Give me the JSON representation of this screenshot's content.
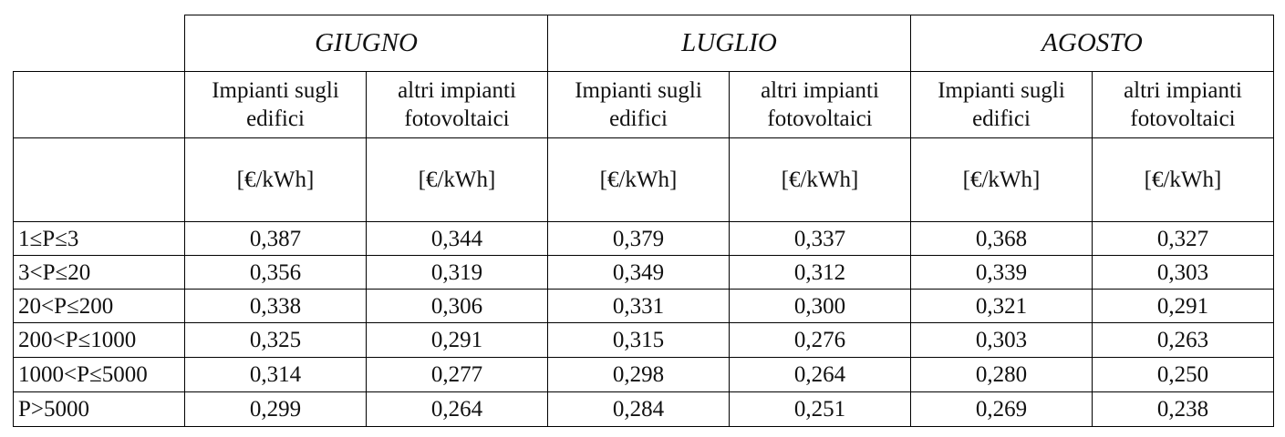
{
  "months": [
    "GIUGNO",
    "LUGLIO",
    "AGOSTO"
  ],
  "subheaders": [
    "Impianti sugli edifici",
    "altri impianti fotovoltaici"
  ],
  "subheader_lines": [
    [
      "Impianti sugli",
      "edifici"
    ],
    [
      "altri impianti",
      "fotovoltaici"
    ]
  ],
  "unit": "[€/kWh]",
  "rows": [
    {
      "label": "1≤P≤3",
      "values": [
        "0,387",
        "0,344",
        "0,379",
        "0,337",
        "0,368",
        "0,327"
      ]
    },
    {
      "label": "3<P≤20",
      "values": [
        "0,356",
        "0,319",
        "0,349",
        "0,312",
        "0,339",
        "0,303"
      ]
    },
    {
      "label": "20<P≤200",
      "values": [
        "0,338",
        "0,306",
        "0,331",
        "0,300",
        "0,321",
        "0,291"
      ]
    },
    {
      "label": "200<P≤1000",
      "values": [
        "0,325",
        "0,291",
        "0,315",
        "0,276",
        "0,303",
        "0,263"
      ]
    },
    {
      "label": "1000<P≤5000",
      "values": [
        "0,314",
        "0,277",
        "0,298",
        "0,264",
        "0,280",
        "0,250"
      ]
    },
    {
      "label": "P>5000",
      "values": [
        "0,299",
        "0,264",
        "0,284",
        "0,251",
        "0,269",
        "0,238"
      ]
    }
  ]
}
